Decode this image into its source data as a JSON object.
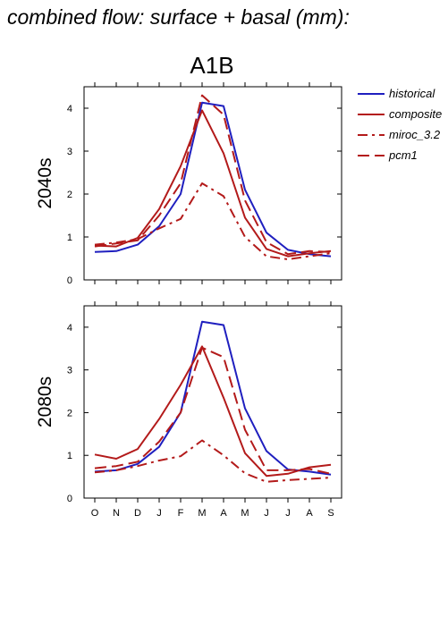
{
  "title": "combined flow: surface + basal (mm):",
  "scenario": "A1B",
  "legend": {
    "entries": [
      {
        "label": "historical",
        "color": "#1f1fbf",
        "dash": "solid"
      },
      {
        "label": "composite",
        "color": "#b31a1a",
        "dash": "solid"
      },
      {
        "label": "miroc_3.2",
        "color": "#b31a1a",
        "dash": "dashdot"
      },
      {
        "label": "pcm1",
        "color": "#b31a1a",
        "dash": "dashed"
      }
    ]
  },
  "chart_data": [
    {
      "type": "line",
      "panel_label": "2040s",
      "categories": [
        "O",
        "N",
        "D",
        "J",
        "F",
        "M",
        "A",
        "M",
        "J",
        "J",
        "A",
        "S"
      ],
      "ylim": [
        0,
        4.5
      ],
      "yticks": [
        0,
        1,
        2,
        3,
        4
      ],
      "series": [
        {
          "name": "historical",
          "values": [
            0.65,
            0.67,
            0.82,
            1.25,
            2.0,
            4.13,
            4.05,
            2.1,
            1.1,
            0.7,
            0.6,
            0.55
          ]
        },
        {
          "name": "composite",
          "values": [
            0.8,
            0.78,
            0.98,
            1.65,
            2.65,
            3.95,
            2.95,
            1.45,
            0.72,
            0.55,
            0.62,
            0.67
          ]
        },
        {
          "name": "miroc_3.2",
          "values": [
            0.82,
            0.87,
            0.95,
            1.2,
            1.42,
            2.25,
            1.95,
            1.0,
            0.55,
            0.48,
            0.55,
            0.62
          ]
        },
        {
          "name": "pcm1",
          "values": [
            0.78,
            0.85,
            0.92,
            1.5,
            2.25,
            4.3,
            3.85,
            1.85,
            0.88,
            0.6,
            0.67,
            0.65
          ]
        }
      ]
    },
    {
      "type": "line",
      "panel_label": "2080s",
      "categories": [
        "O",
        "N",
        "D",
        "J",
        "F",
        "M",
        "A",
        "M",
        "J",
        "J",
        "A",
        "S"
      ],
      "ylim": [
        0,
        4.5
      ],
      "yticks": [
        0,
        1,
        2,
        3,
        4
      ],
      "series": [
        {
          "name": "historical",
          "values": [
            0.62,
            0.65,
            0.8,
            1.2,
            2.0,
            4.13,
            4.05,
            2.1,
            1.1,
            0.67,
            0.62,
            0.55
          ]
        },
        {
          "name": "composite",
          "values": [
            1.02,
            0.92,
            1.15,
            1.85,
            2.65,
            3.55,
            2.35,
            1.05,
            0.52,
            0.57,
            0.72,
            0.78
          ]
        },
        {
          "name": "miroc_3.2",
          "values": [
            0.6,
            0.65,
            0.75,
            0.88,
            0.98,
            1.35,
            1.0,
            0.58,
            0.38,
            0.42,
            0.45,
            0.48
          ]
        },
        {
          "name": "pcm1",
          "values": [
            0.7,
            0.75,
            0.85,
            1.32,
            2.0,
            3.52,
            3.3,
            1.6,
            0.65,
            0.65,
            0.68,
            0.57
          ]
        }
      ]
    }
  ]
}
